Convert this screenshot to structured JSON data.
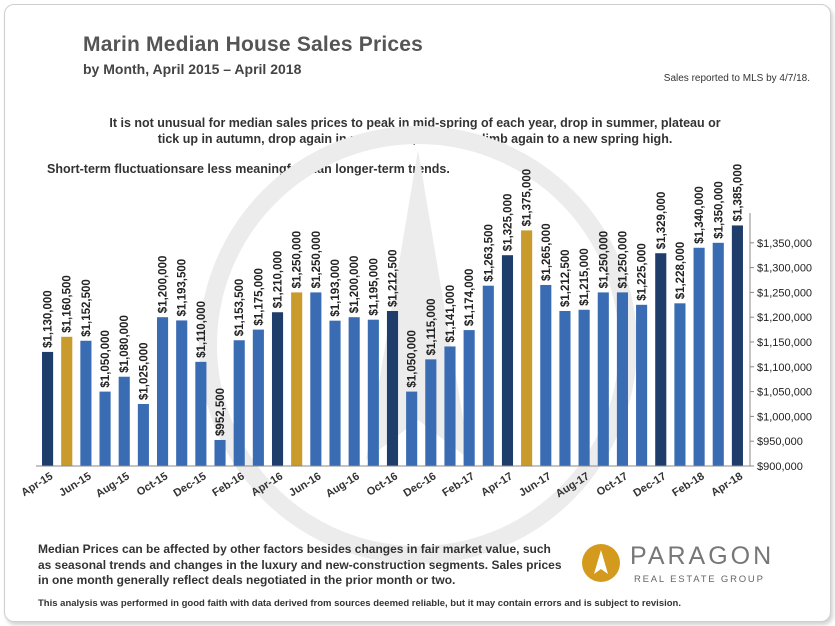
{
  "title": "Marin Median House Sales Prices",
  "subtitle": "by Month, April 2015 – April 2018",
  "mls_note": "Sales reported to MLS by 4/7/18.",
  "description": "It is not unusual for median sales prices to peak in mid-spring of each year, drop in summer, plateau or tick up in autumn, drop again in mid-winter, and then climb again to a new spring high.",
  "note": "Short-term fluctuationsare less meaningful than longer-term trends.",
  "footer": "Median Prices can be affected by other factors besides changes in fair market value, such as seasonal trends and changes in the luxury and new-construction segments. Sales prices in one month generally reflect deals negotiated in the prior month or two.",
  "disclaimer": "This analysis was performed in good faith with data derived from sources deemed reliable, but it may contain errors and is subject to revision.",
  "logo": {
    "name": "PARAGON",
    "tagline": "REAL ESTATE GROUP"
  },
  "colors": {
    "dark_bar": "#1f3d6b",
    "light_bar": "#3a6cb4",
    "highlight_bar": "#c99a2c",
    "watermark": "#ececec"
  },
  "chart_data": {
    "type": "bar",
    "title": "Marin Median House Sales Prices",
    "xlabel": "",
    "ylabel": "",
    "ylim": [
      900000,
      1400000
    ],
    "y_ticks": [
      "$900,000",
      "$950,000",
      "$1,000,000",
      "$1,050,000",
      "$1,100,000",
      "$1,150,000",
      "$1,200,000",
      "$1,250,000",
      "$1,300,000",
      "$1,350,000"
    ],
    "y_tick_values": [
      900000,
      950000,
      1000000,
      1050000,
      1100000,
      1150000,
      1200000,
      1250000,
      1300000,
      1350000
    ],
    "x_tick_labels": [
      "Apr-15",
      "Jun-15",
      "Aug-15",
      "Oct-15",
      "Dec-15",
      "Feb-16",
      "Apr-16",
      "Jun-16",
      "Aug-16",
      "Oct-16",
      "Dec-16",
      "Feb-17",
      "Apr-17",
      "Jun-17",
      "Aug-17",
      "Oct-17",
      "Dec-17",
      "Feb-18",
      "Apr-18"
    ],
    "categories": [
      "Apr-15",
      "May-15",
      "Jun-15",
      "Jul-15",
      "Aug-15",
      "Sep-15",
      "Oct-15",
      "Nov-15",
      "Dec-15",
      "Jan-16",
      "Feb-16",
      "Mar-16",
      "Apr-16",
      "May-16",
      "Jun-16",
      "Jul-16",
      "Aug-16",
      "Sep-16",
      "Oct-16",
      "Nov-16",
      "Dec-16",
      "Jan-17",
      "Feb-17",
      "Mar-17",
      "Apr-17",
      "May-17",
      "Jun-17",
      "Jul-17",
      "Aug-17",
      "Sep-17",
      "Oct-17",
      "Nov-17",
      "Dec-17",
      "Jan-18",
      "Feb-18",
      "Mar-18",
      "Apr-18"
    ],
    "values": [
      1130000,
      1160500,
      1152500,
      1050000,
      1080000,
      1025000,
      1200000,
      1193500,
      1110000,
      952500,
      1153500,
      1175000,
      1210000,
      1250000,
      1250000,
      1193000,
      1200000,
      1195000,
      1212500,
      1050000,
      1115000,
      1141000,
      1174000,
      1263500,
      1325000,
      1375000,
      1265000,
      1212500,
      1215000,
      1250000,
      1250000,
      1225000,
      1329000,
      1228000,
      1340000,
      1350000,
      1385000
    ],
    "labels": [
      "$1,130,000",
      "$1,160,500",
      "$1,152,500",
      "$1,050,000",
      "$1,080,000",
      "$1,025,000",
      "$1,200,000",
      "$1,193,500",
      "$1,110,000",
      "$952,500",
      "$1,153,500",
      "$1,175,000",
      "$1,210,000",
      "$1,250,000",
      "$1,250,000",
      "$1,193,000",
      "$1,200,000",
      "$1,195,000",
      "$1,212,500",
      "$1,050,000",
      "$1,115,000",
      "$1,141,000",
      "$1,174,000",
      "$1,263,500",
      "$1,325,000",
      "$1,375,000",
      "$1,265,000",
      "$1,212,500",
      "$1,215,000",
      "$1,250,000",
      "$1,250,000",
      "$1,225,000",
      "$1,329,000",
      "$1,228,000",
      "$1,340,000",
      "$1,350,000",
      "$1,385,000"
    ],
    "bar_colors": [
      "dark",
      "highlight",
      "light",
      "light",
      "light",
      "light",
      "light",
      "light",
      "light",
      "light",
      "light",
      "light",
      "dark",
      "highlight",
      "light",
      "light",
      "light",
      "light",
      "dark",
      "light",
      "light",
      "light",
      "light",
      "light",
      "dark",
      "highlight",
      "light",
      "light",
      "light",
      "light",
      "light",
      "light",
      "dark",
      "light",
      "light",
      "light",
      "dark"
    ],
    "y_axis_position": "right"
  }
}
